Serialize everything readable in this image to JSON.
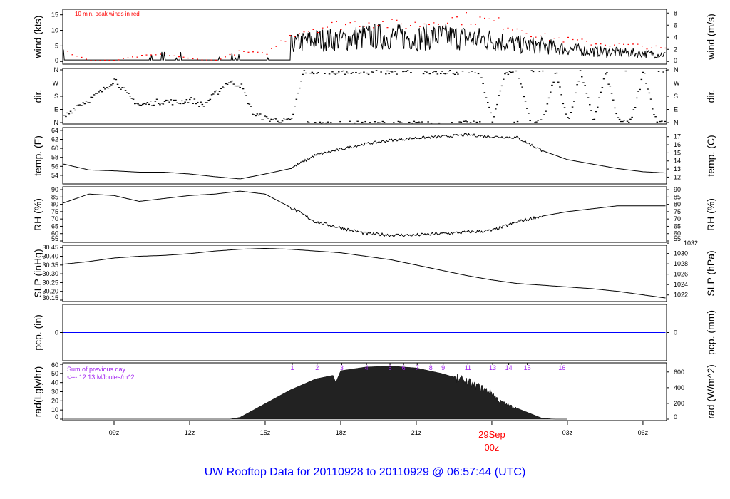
{
  "title": "UW Rooftop Data for 20110928  to  20110929 @ 06:57:44  (UTC)",
  "chart_data": [
    {
      "type": "line",
      "id": "wind",
      "ylabel": "wind (kts)",
      "ylabel_right": "wind (m/s)",
      "annotation": "10 min. peak winds in red",
      "yticks": [
        0,
        5,
        10,
        15
      ],
      "yticks_right": [
        0,
        2,
        4,
        6,
        8
      ],
      "ylim": [
        -0.4,
        16.3
      ],
      "hours": [
        7,
        8,
        9,
        10,
        11,
        12,
        13,
        14,
        15,
        16,
        17,
        18,
        19,
        20,
        21,
        22,
        23,
        24,
        25,
        26,
        27,
        28,
        29,
        30,
        31
      ],
      "series": [
        {
          "name": "wind",
          "color": "#000000",
          "values": [
            1.5,
            1.2,
            0.5,
            0.5,
            0.8,
            0.8,
            0.5,
            0.8,
            0.6,
            5.5,
            7,
            7,
            8,
            8,
            7.5,
            8,
            7.5,
            7,
            5.5,
            5,
            4,
            3.2,
            3,
            2.5,
            2.2
          ]
        },
        {
          "name": "peak",
          "color": "#ff0000",
          "values": [
            3.5,
            0.5,
            0.5,
            1.8,
            2.5,
            1,
            0.5,
            3.3,
            2.5,
            9,
            11,
            12,
            13,
            12,
            12,
            13.5,
            14,
            13,
            11,
            8,
            7,
            6,
            5.5,
            5,
            4
          ]
        }
      ]
    },
    {
      "type": "scatter",
      "id": "dir",
      "ylabel": "dir.",
      "ylabel_right": "dir.",
      "yticks": [
        "N",
        "E",
        "S",
        "W",
        "N"
      ],
      "ylim": [
        0,
        360
      ],
      "hours": [
        7,
        7.5,
        8,
        8.5,
        9,
        9.5,
        10,
        10.5,
        11,
        11.5,
        12,
        12.5,
        13,
        13.5,
        14,
        14.5,
        15,
        15.5,
        16,
        16.5,
        17,
        17.5,
        18,
        18.5,
        19,
        19.5,
        20,
        20.5,
        21,
        21.5,
        22,
        22.5,
        23,
        23.5,
        24,
        24.5,
        25,
        25.5,
        26,
        26.5,
        27,
        27.5,
        28,
        28.5,
        29,
        29.5,
        30,
        30.5,
        31
      ],
      "values": [
        40,
        120,
        160,
        220,
        300,
        190,
        120,
        140,
        150,
        140,
        160,
        120,
        200,
        280,
        260,
        60,
        30,
        20,
        10,
        355,
        350,
        355,
        350,
        355,
        350,
        355,
        355,
        350,
        355,
        350,
        355,
        350,
        355,
        350,
        5,
        350,
        355,
        5,
        10,
        355,
        5,
        355,
        10,
        350,
        5,
        10,
        355,
        5,
        10
      ]
    },
    {
      "type": "line",
      "id": "temp",
      "ylabel": "temp. (F)",
      "ylabel_right": "temp. (C)",
      "yticks": [
        54,
        56,
        58,
        60,
        62,
        64
      ],
      "yticks_right": [
        12,
        13,
        14,
        15,
        16,
        17
      ],
      "ylim": [
        52.4,
        64.3
      ],
      "hours": [
        7,
        8,
        9,
        10,
        11,
        12,
        13,
        14,
        15,
        16,
        17,
        18,
        19,
        20,
        21,
        22,
        23,
        24,
        25,
        26,
        27,
        28,
        29,
        30,
        31
      ],
      "values": [
        56.5,
        55.2,
        55,
        54.7,
        54.7,
        54.3,
        53.7,
        53.2,
        54.3,
        55.5,
        58.5,
        59.8,
        61,
        61.8,
        62.3,
        62.6,
        63,
        62.6,
        62.4,
        59.5,
        57.5,
        56.5,
        55.5,
        54.8,
        54.5
      ]
    },
    {
      "type": "line",
      "id": "rh",
      "ylabel": "RH (%)",
      "ylabel_right": "RH (%)",
      "yticks": [
        55,
        60,
        65,
        70,
        75,
        80,
        85,
        90
      ],
      "yticks_right": [
        55,
        60,
        65,
        70,
        75,
        80,
        85,
        90
      ],
      "ylim": [
        55,
        91
      ],
      "hours": [
        7,
        8,
        9,
        10,
        11,
        12,
        13,
        14,
        15,
        16,
        17,
        18,
        19,
        20,
        21,
        22,
        23,
        24,
        25,
        26,
        27,
        28,
        29,
        30,
        31
      ],
      "values": [
        81,
        87,
        86,
        82,
        84,
        86,
        87,
        89,
        87,
        78,
        68,
        64,
        60,
        59,
        59,
        60,
        61,
        62,
        68,
        72,
        75,
        77,
        79,
        79,
        79
      ]
    },
    {
      "type": "line",
      "id": "slp",
      "ylabel": "SLP (inHg)",
      "ylabel_right": "SLP (hPa)",
      "yticks": [
        30.15,
        30.2,
        30.25,
        30.3,
        30.35,
        30.4,
        30.45
      ],
      "ytick_labels": [
        "30.15",
        "30.20",
        "30.25",
        "30.30",
        "30.35",
        "30.40",
        "30.45"
      ],
      "yticks_right": [
        1022,
        1024,
        1026,
        1028,
        1030,
        1032
      ],
      "ylim": [
        30.15,
        30.455
      ],
      "hours": [
        7,
        8,
        9,
        10,
        11,
        12,
        13,
        14,
        15,
        16,
        17,
        18,
        19,
        20,
        21,
        22,
        23,
        24,
        25,
        26,
        27,
        28,
        29,
        30,
        31
      ],
      "values": [
        30.355,
        30.37,
        30.39,
        30.4,
        30.405,
        30.415,
        30.43,
        30.44,
        30.445,
        30.44,
        30.43,
        30.42,
        30.4,
        30.38,
        30.35,
        30.32,
        30.29,
        30.265,
        30.245,
        30.235,
        30.225,
        30.215,
        30.2,
        30.18,
        30.16
      ]
    },
    {
      "type": "line",
      "id": "pcp",
      "ylabel": "pcp. (in)",
      "ylabel_right": "pcp. (mm)",
      "yticks": [
        0
      ],
      "yticks_right": [
        0
      ],
      "ylim": [
        -1,
        1
      ],
      "hours": [
        7,
        31
      ],
      "values": [
        0,
        0
      ],
      "color": "#0000ff"
    },
    {
      "type": "area",
      "id": "rad",
      "ylabel": "rad(Lgly/hr)",
      "ylabel_right": "rad (W/m^2)",
      "yticks": [
        0,
        10,
        20,
        30,
        40,
        50,
        60
      ],
      "yticks_right": [
        0,
        200,
        400,
        600
      ],
      "ylim": [
        0,
        60
      ],
      "annotation_line1": "Sum of previous day",
      "annotation_line2": "<--- 12.13 MJoules/m^2",
      "hour_markers": [
        "1",
        "2",
        "3",
        "4",
        "5",
        "6",
        "7",
        "8",
        "9",
        "11",
        "13",
        "14",
        "15",
        "16"
      ],
      "hours": [
        7,
        8,
        9,
        10,
        11,
        12,
        13,
        13.6,
        14,
        15,
        16,
        17,
        17.7,
        17.8,
        18,
        19,
        20,
        21,
        22,
        23,
        24,
        24.3,
        25,
        26,
        26.5,
        27
      ],
      "values": [
        0,
        0,
        0,
        0,
        0,
        0,
        0,
        0,
        2,
        17,
        32,
        44,
        48,
        40,
        53,
        57,
        58,
        56,
        50,
        42,
        30,
        20,
        12,
        1,
        0,
        0
      ]
    }
  ],
  "x_axis": {
    "ticks": [
      "09z",
      "12z",
      "15z",
      "18z",
      "21z",
      "03z",
      "06z"
    ],
    "tick_hours": [
      9,
      12,
      15,
      18,
      21,
      27,
      30
    ],
    "midnight_label_date": "29Sep",
    "midnight_label_time": "00z",
    "midnight_hour": 24,
    "midnight_color": "#ff0000"
  },
  "colors": {
    "title": "#0000ff",
    "annotation": "#a020f0",
    "peak": "#ff0000"
  }
}
